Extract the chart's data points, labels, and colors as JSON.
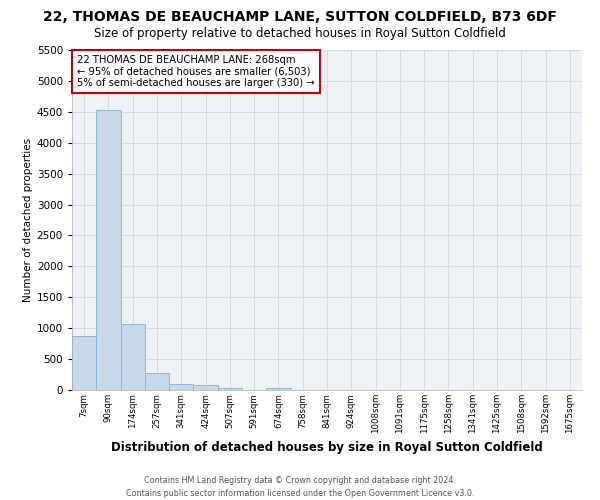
{
  "title": "22, THOMAS DE BEAUCHAMP LANE, SUTTON COLDFIELD, B73 6DF",
  "subtitle": "Size of property relative to detached houses in Royal Sutton Coldfield",
  "xlabel": "Distribution of detached houses by size in Royal Sutton Coldfield",
  "ylabel": "Number of detached properties",
  "footer_line1": "Contains HM Land Registry data © Crown copyright and database right 2024.",
  "footer_line2": "Contains public sector information licensed under the Open Government Licence v3.0.",
  "categories": [
    "7sqm",
    "90sqm",
    "174sqm",
    "257sqm",
    "341sqm",
    "424sqm",
    "507sqm",
    "591sqm",
    "674sqm",
    "758sqm",
    "841sqm",
    "924sqm",
    "1008sqm",
    "1091sqm",
    "1175sqm",
    "1258sqm",
    "1341sqm",
    "1425sqm",
    "1508sqm",
    "1592sqm",
    "1675sqm"
  ],
  "values": [
    880,
    4530,
    1060,
    270,
    90,
    80,
    40,
    0,
    40,
    0,
    0,
    0,
    0,
    0,
    0,
    0,
    0,
    0,
    0,
    0,
    0
  ],
  "bar_color": "#c6d9ea",
  "bar_edge_color": "#7fb3d3",
  "ylim": [
    0,
    5500
  ],
  "yticks": [
    0,
    500,
    1000,
    1500,
    2000,
    2500,
    3000,
    3500,
    4000,
    4500,
    5000,
    5500
  ],
  "annotation_line1": "22 THOMAS DE BEAUCHAMP LANE: 268sqm",
  "annotation_line2": "← 95% of detached houses are smaller (6,503)",
  "annotation_line3": "5% of semi-detached houses are larger (330) →",
  "annotation_box_edge_color": "#cc0000",
  "grid_color": "#d0d8e0",
  "bg_color": "#eef2f7",
  "title_fontsize": 10,
  "subtitle_fontsize": 8.5
}
